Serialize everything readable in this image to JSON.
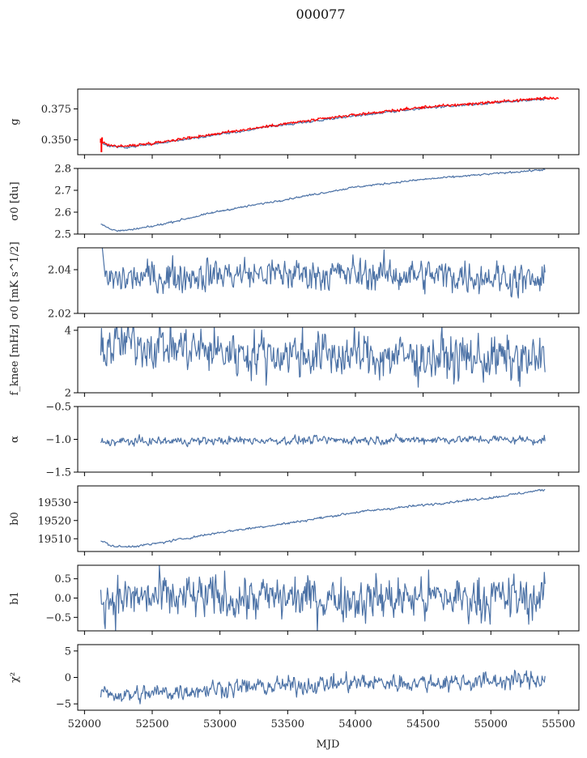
{
  "figure": {
    "title": "000077",
    "xlabel": "MJD"
  },
  "chart_data": {
    "type": "line",
    "xlim": [
      51950,
      55650
    ],
    "xticks": [
      52000,
      52500,
      53000,
      53500,
      54000,
      54500,
      55000,
      55500
    ],
    "xtick_labels": [
      "52000",
      "52500",
      "53000",
      "53500",
      "54000",
      "54500",
      "55000",
      "55500"
    ],
    "x_start": 52120,
    "x_end": 55400,
    "n_points": 600,
    "colors": {
      "primary": "#4c72a6",
      "overlay": "#ff0000"
    },
    "panels": [
      {
        "ylabel": "g",
        "ylim": [
          0.338,
          0.391
        ],
        "yticks": [
          0.35,
          0.375
        ],
        "ytick_labels": [
          "0.350",
          "0.375"
        ],
        "trend": [
          [
            52120,
            0.3475
          ],
          [
            52200,
            0.3445
          ],
          [
            52300,
            0.344
          ],
          [
            52500,
            0.3465
          ],
          [
            53000,
            0.3545
          ],
          [
            53500,
            0.3625
          ],
          [
            54000,
            0.3695
          ],
          [
            54500,
            0.3755
          ],
          [
            55000,
            0.3795
          ],
          [
            55300,
            0.382
          ],
          [
            55400,
            0.383
          ]
        ],
        "noise": 0.0004,
        "overlay": {
          "color": "#ff0000",
          "x_end": 55500,
          "trend_offset": 0.0008,
          "noise": 0.0006,
          "spikes": [
            [
              52120,
              0.351
            ],
            [
              52125,
              0.34
            ],
            [
              52130,
              0.352
            ],
            [
              55400,
              0.385
            ]
          ]
        }
      },
      {
        "ylabel": "σ0 [du]",
        "ylim": [
          2.5,
          2.8
        ],
        "yticks": [
          2.5,
          2.6,
          2.7,
          2.8
        ],
        "ytick_labels": [
          "2.5",
          "2.6",
          "2.7",
          "2.8"
        ],
        "trend": [
          [
            52120,
            2.545
          ],
          [
            52200,
            2.52
          ],
          [
            52300,
            2.515
          ],
          [
            52500,
            2.535
          ],
          [
            53000,
            2.605
          ],
          [
            53500,
            2.66
          ],
          [
            54000,
            2.715
          ],
          [
            54500,
            2.75
          ],
          [
            55000,
            2.775
          ],
          [
            55400,
            2.795
          ]
        ],
        "noise": 0.002
      },
      {
        "ylabel": "σ0 [mK s^1/2]",
        "ylim": [
          2.02,
          2.05
        ],
        "yticks": [
          2.02,
          2.04
        ],
        "ytick_labels": [
          "2.02",
          "2.04"
        ],
        "trend": [
          [
            52120,
            2.048
          ],
          [
            52160,
            2.035
          ],
          [
            52300,
            2.036
          ],
          [
            53000,
            2.038
          ],
          [
            54000,
            2.038
          ],
          [
            55000,
            2.037
          ],
          [
            55400,
            2.034
          ]
        ],
        "noise": 0.0035
      },
      {
        "ylabel": "f_knee [mHz]",
        "ylim": [
          2.0,
          4.1
        ],
        "yticks": [
          2,
          4
        ],
        "ytick_labels": [
          "2",
          "4"
        ],
        "trend": [
          [
            52120,
            3.5
          ],
          [
            52400,
            3.6
          ],
          [
            53000,
            3.3
          ],
          [
            54000,
            3.2
          ],
          [
            55000,
            3.1
          ],
          [
            55400,
            3.0
          ]
        ],
        "noise": 0.35
      },
      {
        "ylabel": "α",
        "ylim": [
          -1.5,
          -0.5
        ],
        "yticks": [
          -1.5,
          -1.0,
          -0.5
        ],
        "ytick_labels": [
          "−1.5",
          "−1.0",
          "−0.5"
        ],
        "trend": [
          [
            52120,
            -1.04
          ],
          [
            53000,
            -1.02
          ],
          [
            54000,
            -1.01
          ],
          [
            55000,
            -1.0
          ],
          [
            55400,
            -1.01
          ]
        ],
        "noise": 0.03
      },
      {
        "ylabel": "b0",
        "ylim": [
          19503,
          19539
        ],
        "yticks": [
          19510,
          19520,
          19530
        ],
        "ytick_labels": [
          "19510",
          "19520",
          "19530"
        ],
        "trend": [
          [
            52120,
            19509
          ],
          [
            52200,
            19506
          ],
          [
            52300,
            19505.5
          ],
          [
            52500,
            19507
          ],
          [
            53000,
            19513.5
          ],
          [
            53500,
            19518.5
          ],
          [
            54000,
            19524.5
          ],
          [
            54500,
            19528.5
          ],
          [
            55000,
            19532.5
          ],
          [
            55400,
            19537
          ]
        ],
        "noise": 0.3
      },
      {
        "ylabel": "b1",
        "ylim": [
          -0.85,
          0.85
        ],
        "yticks": [
          -0.5,
          0.0,
          0.5
        ],
        "ytick_labels": [
          "−0.5",
          "0.0",
          "0.5"
        ],
        "trend": [
          [
            52120,
            0.0
          ],
          [
            55400,
            0.0
          ]
        ],
        "noise": 0.28
      },
      {
        "ylabel": "χ²",
        "ylim": [
          -6.2,
          6.2
        ],
        "yticks": [
          -5,
          0,
          5
        ],
        "ytick_labels": [
          "−5",
          "0",
          "5"
        ],
        "trend": [
          [
            52120,
            -2.5
          ],
          [
            52300,
            -3.5
          ],
          [
            52600,
            -2.8
          ],
          [
            53000,
            -2.0
          ],
          [
            53500,
            -1.6
          ],
          [
            54000,
            -1.0
          ],
          [
            54500,
            -1.0
          ],
          [
            55000,
            -0.7
          ],
          [
            55400,
            -0.3
          ]
        ],
        "noise": 0.8
      }
    ]
  }
}
